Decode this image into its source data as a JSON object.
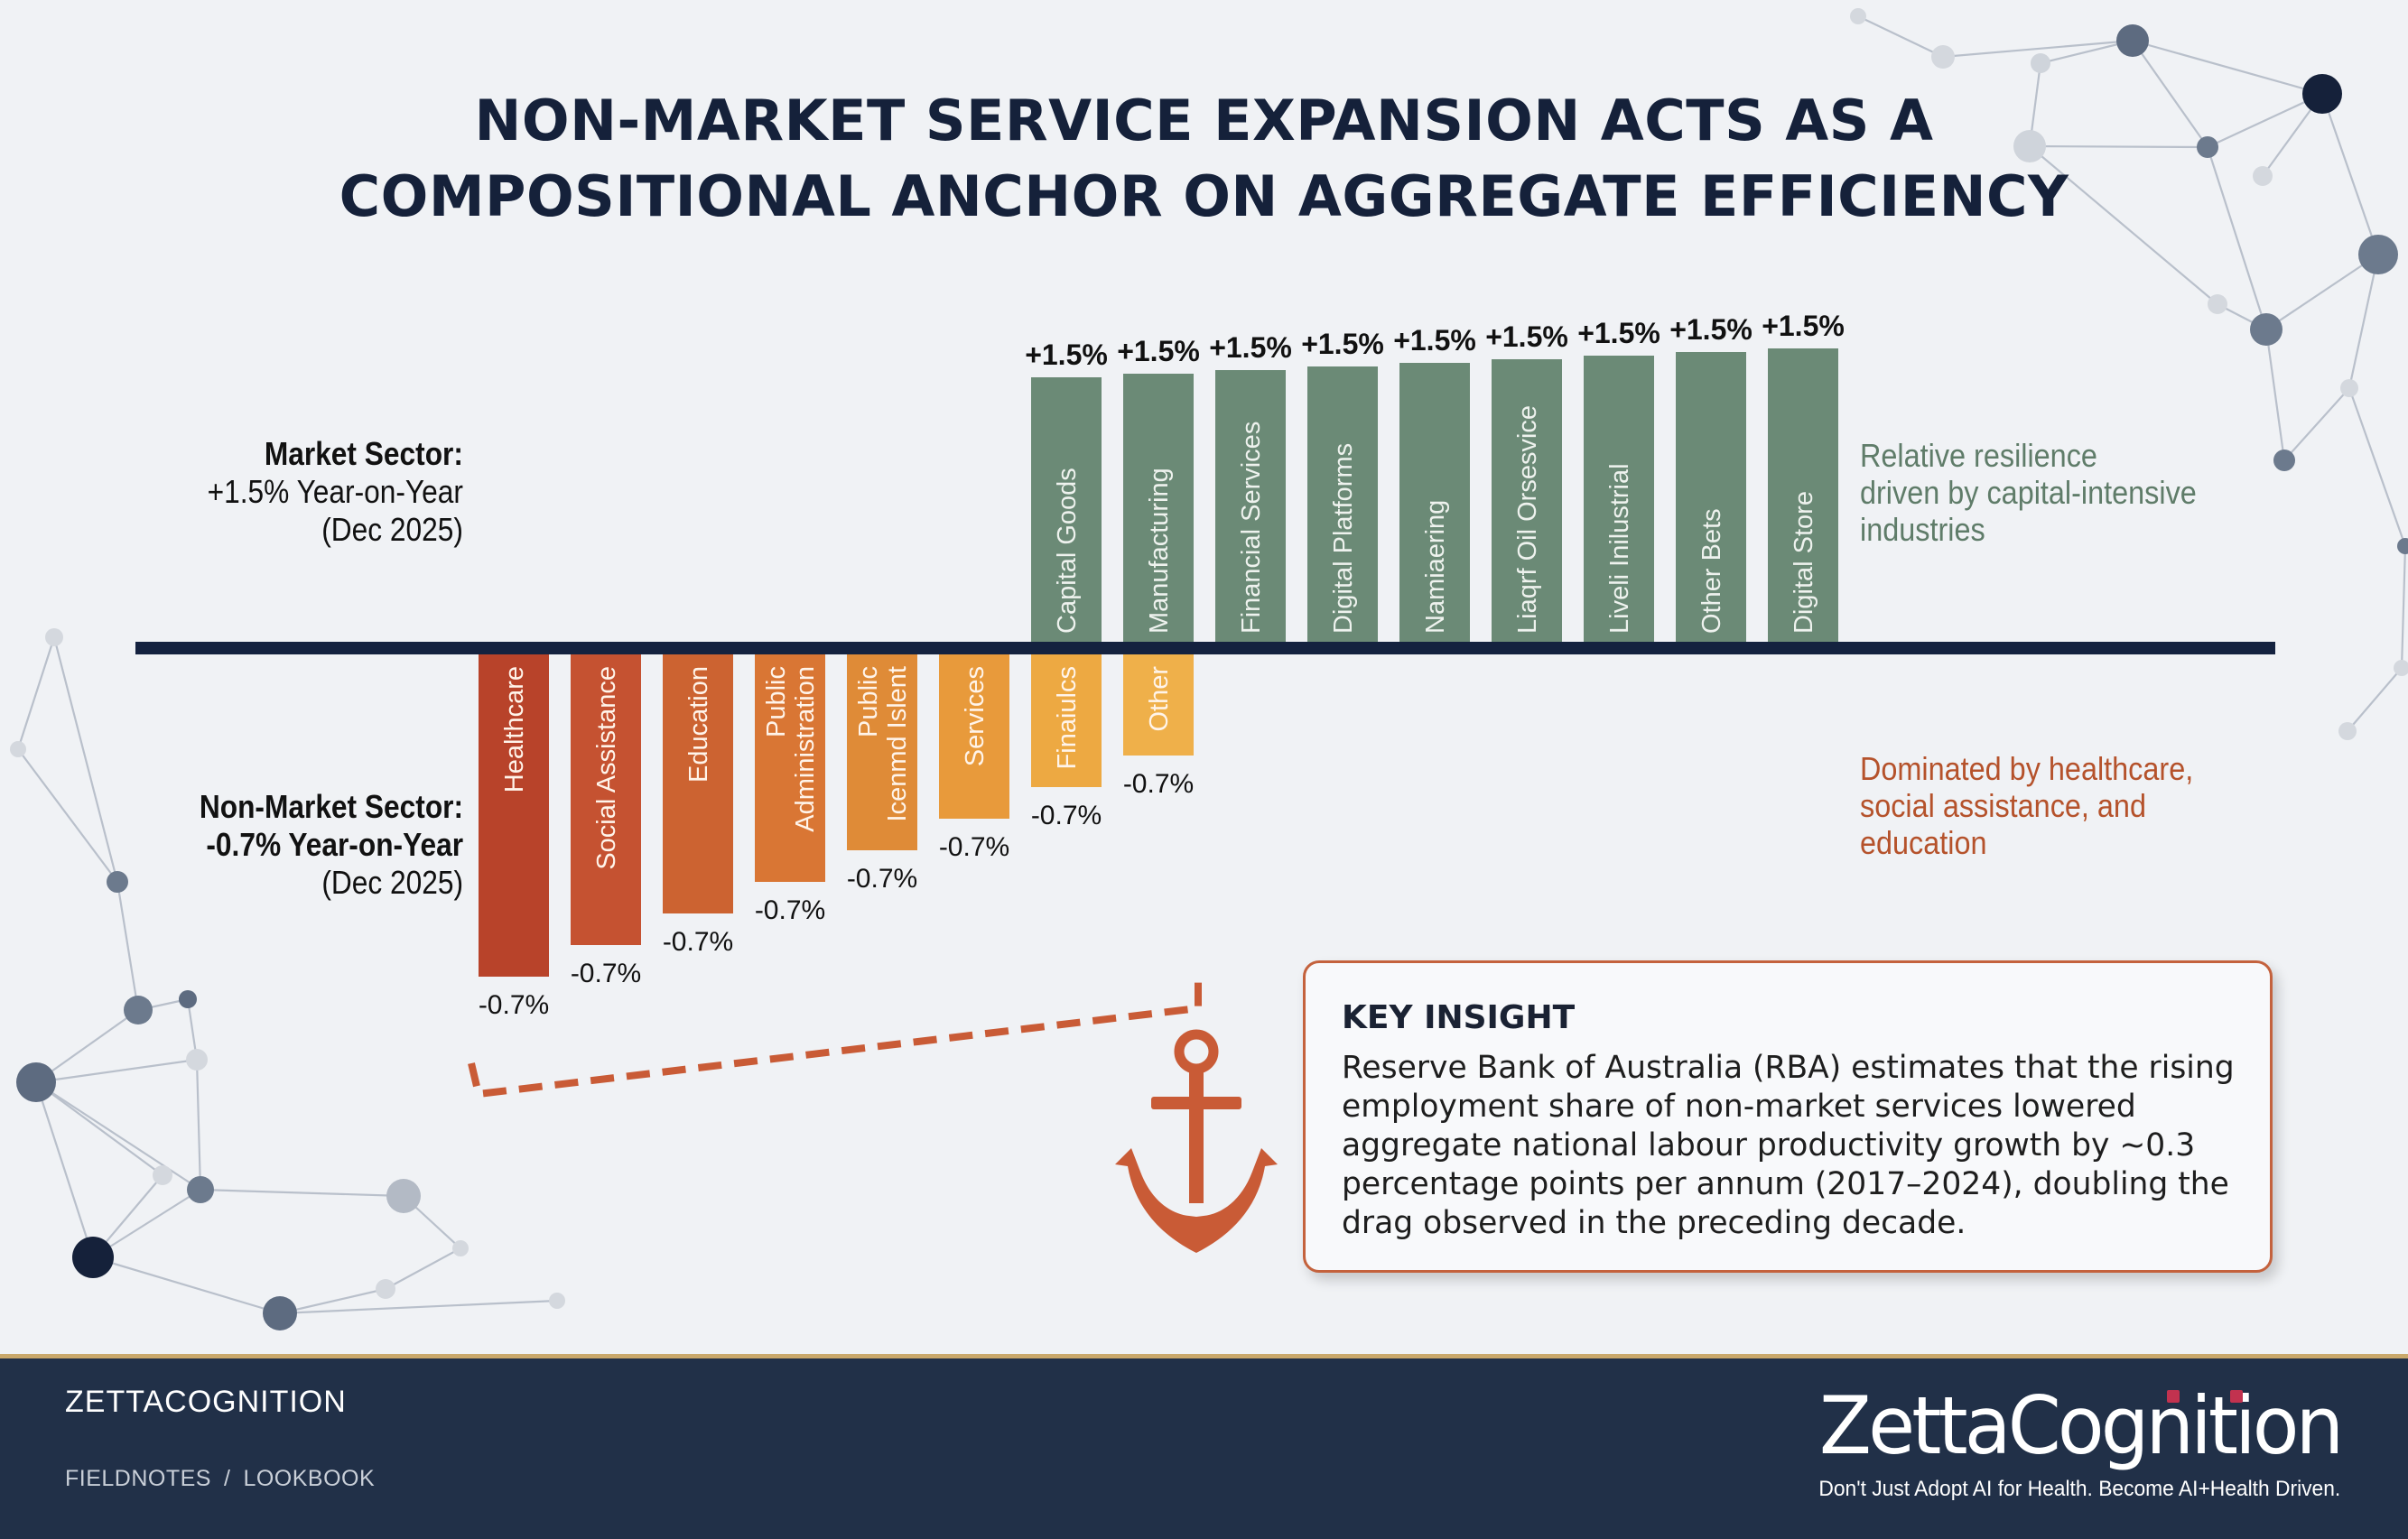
{
  "title": {
    "line1": "NON-MARKET SERVICE EXPANSION ACTS AS A",
    "line2": "COMPOSITIONAL ANCHOR ON AGGREGATE EFFICIENCY"
  },
  "market_label": {
    "name": "Market Sector:",
    "value": "+1.5% Year-on-Year",
    "period": "(Dec 2025)"
  },
  "nonmarket_label": {
    "name": "Non-Market Sector:",
    "value": "-0.7% Year-on-Year",
    "period": "(Dec 2025)"
  },
  "notes": {
    "market": [
      "Relative resilience",
      "driven by capital-intensive",
      "industries"
    ],
    "nonmarket": [
      "Dominated by healthcare,",
      "social assistance, and",
      "education"
    ]
  },
  "insight": {
    "title": "KEY INSIGHT",
    "lines": [
      "Reserve Bank of Australia (RBA) estimates that the rising",
      "employment share of non-market services lowered",
      "aggregate national labour productivity growth by ~0.3",
      "percentage points per annum (2017–2024), doubling the",
      "drag observed in the preceding decade."
    ]
  },
  "footer": {
    "brand": "ZETTACOGNITION",
    "crumbs": [
      "FIELDNOTES",
      "LOOKBOOK"
    ],
    "crumb_separator": "/",
    "logo": "ZettaCognition",
    "tagline": "Don't Just Adopt AI for Health. Become AI+Health Driven."
  },
  "colors": {
    "baseline": "#14223f",
    "market_bar": "#6b8a76",
    "nonmarket_gradient": [
      "#b8432a",
      "#c55231",
      "#cc6331",
      "#d97634",
      "#df8b37",
      "#e89a3b",
      "#eda942",
      "#efb04a"
    ],
    "anchor": "#c95b36"
  },
  "chart_data": {
    "type": "bar",
    "value_unit": "% year-on-year (Dec 2025)",
    "market_series": {
      "categories": [
        "Capital Goods",
        "Manufacturing",
        "Financial Services",
        "Digital Platforms",
        "Namiaering",
        "Liaqrf Oil Orsesvice",
        "Liveli Inilustrial",
        "Other Bets",
        "Digital Store"
      ],
      "values": [
        1.5,
        1.5,
        1.5,
        1.5,
        1.5,
        1.5,
        1.5,
        1.5,
        1.5
      ],
      "labels": [
        "+1.5%",
        "+1.5%",
        "+1.5%",
        "+1.5%",
        "+1.5%",
        "+1.5%",
        "+1.5%",
        "+1.5%",
        "+1.5%"
      ]
    },
    "nonmarket_series": {
      "categories": [
        "Healthcare",
        "Social Assistance",
        "Education",
        "Public Administration",
        "Public Icenmd Islent",
        "Services",
        "Finaiulcs",
        "Other"
      ],
      "values": [
        -0.7,
        -0.7,
        -0.7,
        -0.7,
        -0.7,
        -0.7,
        -0.7,
        -0.7
      ],
      "labels": [
        "-0.7%",
        "-0.7%",
        "-0.7%",
        "-0.7%",
        "-0.7%",
        "-0.7%",
        "-0.7%",
        "-0.7%"
      ]
    }
  }
}
